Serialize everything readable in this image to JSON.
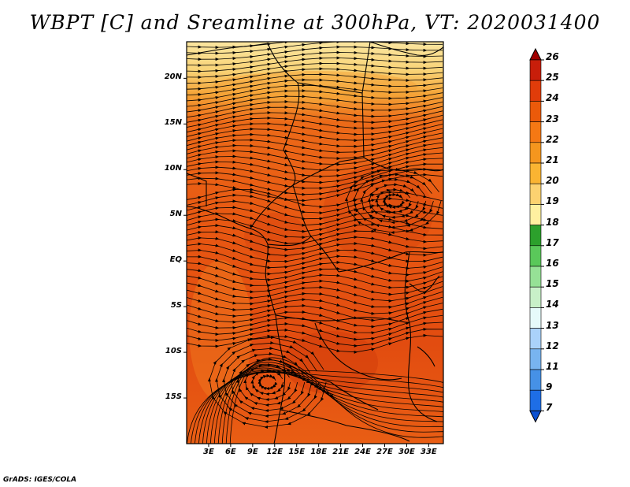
{
  "title": "WBPT [C] and Sreamline at 300hPa, VT: 2020031400",
  "credit": "GrADS: IGES/COLA",
  "map": {
    "lon_range": [
      0,
      35
    ],
    "lat_range": [
      -20,
      24
    ],
    "lat_ticks": [
      {
        "label": "20N",
        "lat": 20
      },
      {
        "label": "15N",
        "lat": 15
      },
      {
        "label": "10N",
        "lat": 10
      },
      {
        "label": "5N",
        "lat": 5
      },
      {
        "label": "EQ",
        "lat": 0
      },
      {
        "label": "5S",
        "lat": -5
      },
      {
        "label": "10S",
        "lat": -10
      },
      {
        "label": "15S",
        "lat": -15
      }
    ],
    "lon_ticks": [
      {
        "label": "3E",
        "lon": 3
      },
      {
        "label": "6E",
        "lon": 6
      },
      {
        "label": "9E",
        "lon": 9
      },
      {
        "label": "12E",
        "lon": 12
      },
      {
        "label": "15E",
        "lon": 15
      },
      {
        "label": "18E",
        "lon": 18
      },
      {
        "label": "21E",
        "lon": 21
      },
      {
        "label": "24E",
        "lon": 24
      },
      {
        "label": "27E",
        "lon": 27
      },
      {
        "label": "30E",
        "lon": 30
      },
      {
        "label": "33E",
        "lon": 33
      }
    ]
  },
  "colorbar": {
    "labels": [
      "26",
      "25",
      "24",
      "23",
      "22",
      "21",
      "20",
      "19",
      "18",
      "17",
      "16",
      "15",
      "14",
      "13",
      "12",
      "11",
      "9",
      "7"
    ],
    "colors": [
      "#a00000",
      "#c81e0a",
      "#e03c0a",
      "#eb5a0a",
      "#f57814",
      "#f5961e",
      "#fab432",
      "#fcd270",
      "#fff0a0",
      "#2ca02c",
      "#5ac85a",
      "#96e196",
      "#c8f0c8",
      "#e6fafa",
      "#aad2fa",
      "#78b4f0",
      "#4691e6",
      "#1e6ee6",
      "#0a50d2"
    ]
  },
  "colors": {
    "hot": "#e04a12",
    "warm": "#f07a1e",
    "pale": "#f9d478",
    "background": "#ffffff"
  }
}
